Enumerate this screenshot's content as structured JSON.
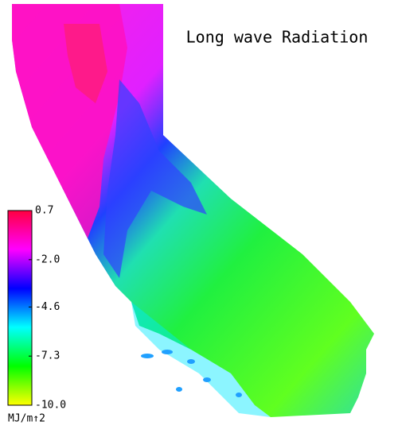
{
  "map": {
    "title": "Long wave Radiation",
    "colorbar": {
      "lim": [
        -10,
        0.7
      ],
      "ticks": [
        0.7,
        {
          "value": -2,
          "label": "-2.0"
        },
        -4.6,
        -7.3,
        {
          "value": -10,
          "label": "-10.0"
        }
      ],
      "unit": "MJ/m↑2",
      "colors": [
        "#ffff00",
        "#00ff00",
        "#00ffff",
        "#0000ff",
        "#ff00ff",
        "#ff0040"
      ]
    }
  }
}
